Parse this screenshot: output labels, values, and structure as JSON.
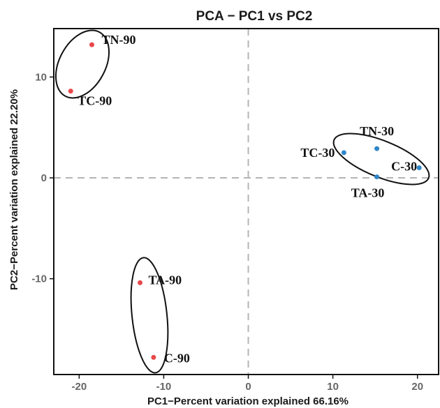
{
  "chart_data": {
    "type": "scatter",
    "title": "PCA − PC1 vs PC2",
    "xlabel": "PC1−Percent variation explained 66.16%",
    "ylabel": "PC2−Percent variation explained 22.20%",
    "xlim": [
      -23,
      22.5
    ],
    "ylim": [
      -19.5,
      14.8
    ],
    "xticks": [
      -20,
      -10,
      0,
      10,
      20
    ],
    "yticks": [
      -10,
      0,
      10
    ],
    "grid": false,
    "reference_lines": {
      "x": 0,
      "y": 0
    },
    "colors": {
      "red_group": "#e8484b",
      "blue_group": "#2f86c8",
      "ref_line": "#b5b5b5",
      "ellipse": "#111111"
    },
    "series": [
      {
        "color": "#e8484b",
        "points": [
          {
            "label": "TN-90",
            "x": -18.5,
            "y": 13.2
          },
          {
            "label": "TC-90",
            "x": -21.0,
            "y": 8.6
          },
          {
            "label": "TA-90",
            "x": -12.8,
            "y": -10.4
          },
          {
            "label": "C-90",
            "x": -11.2,
            "y": -17.8
          }
        ]
      },
      {
        "color": "#2f86c8",
        "points": [
          {
            "label": "TN-30",
            "x": 15.2,
            "y": 2.9
          },
          {
            "label": "TC-30",
            "x": 11.3,
            "y": 2.5
          },
          {
            "label": "C-30",
            "x": 20.2,
            "y": 1.0
          },
          {
            "label": "TA-30",
            "x": 15.2,
            "y": 0.1
          }
        ]
      }
    ],
    "clusters": [
      {
        "members": [
          "TN-90",
          "TC-90"
        ]
      },
      {
        "members": [
          "TA-90",
          "C-90"
        ]
      },
      {
        "members": [
          "TN-30",
          "TC-30",
          "C-30",
          "TA-30"
        ]
      }
    ]
  }
}
